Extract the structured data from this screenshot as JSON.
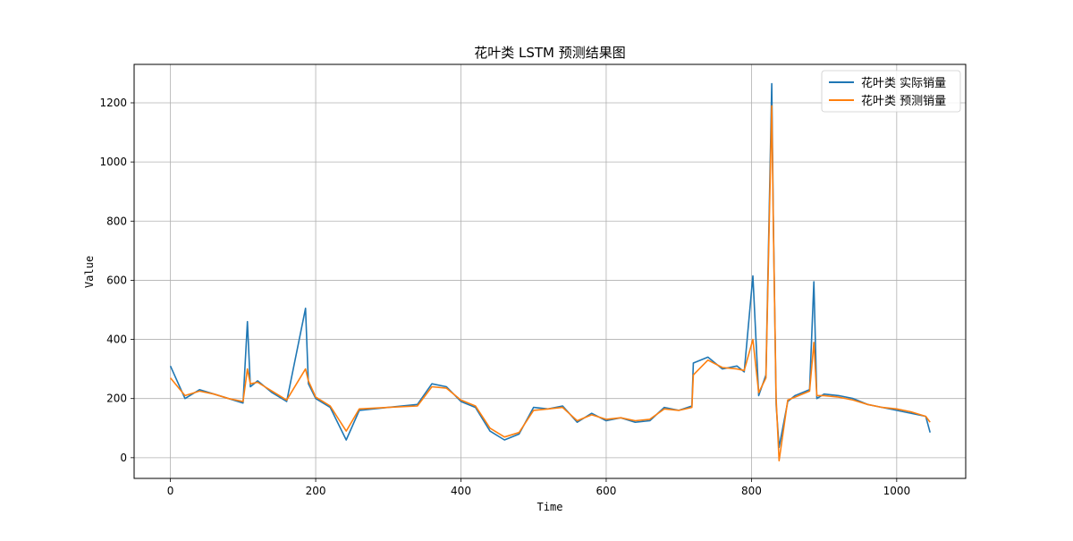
{
  "chart_data": {
    "type": "line",
    "title": "花叶类 LSTM 预测结果图",
    "xlabel": "Time",
    "ylabel": "Value",
    "xlim": [
      -50,
      1095
    ],
    "ylim": [
      -70,
      1330
    ],
    "xticks": [
      0,
      200,
      400,
      600,
      800,
      1000
    ],
    "yticks": [
      0,
      200,
      400,
      600,
      800,
      1000,
      1200
    ],
    "grid": true,
    "legend_position": "top-right",
    "series": [
      {
        "name": "花叶类 实际销量",
        "color": "#1f77b4",
        "x": [
          0,
          20,
          40,
          60,
          80,
          100,
          106,
          110,
          120,
          140,
          160,
          186,
          190,
          200,
          220,
          242,
          260,
          300,
          340,
          360,
          380,
          400,
          420,
          440,
          460,
          480,
          500,
          520,
          540,
          560,
          580,
          600,
          620,
          640,
          660,
          680,
          700,
          718,
          720,
          740,
          760,
          780,
          790,
          802,
          810,
          820,
          828,
          830,
          834,
          838,
          850,
          860,
          880,
          886,
          890,
          900,
          920,
          940,
          960,
          980,
          1000,
          1020,
          1040,
          1046
        ],
        "values": [
          310,
          200,
          230,
          215,
          200,
          185,
          460,
          240,
          260,
          220,
          190,
          505,
          250,
          200,
          170,
          60,
          160,
          170,
          180,
          250,
          240,
          190,
          170,
          90,
          60,
          80,
          170,
          165,
          175,
          120,
          150,
          125,
          135,
          120,
          125,
          170,
          160,
          175,
          320,
          340,
          300,
          310,
          290,
          615,
          210,
          280,
          1265,
          820,
          180,
          35,
          190,
          210,
          230,
          595,
          200,
          215,
          210,
          200,
          180,
          170,
          160,
          150,
          140,
          85
        ]
      },
      {
        "name": "花叶类 预测销量",
        "color": "#ff7f0e",
        "x": [
          0,
          20,
          40,
          60,
          80,
          100,
          106,
          110,
          120,
          140,
          160,
          186,
          190,
          200,
          220,
          242,
          260,
          300,
          340,
          360,
          380,
          400,
          420,
          440,
          460,
          480,
          500,
          520,
          540,
          560,
          580,
          600,
          620,
          640,
          660,
          680,
          700,
          718,
          720,
          740,
          760,
          780,
          790,
          802,
          810,
          820,
          828,
          830,
          834,
          838,
          850,
          860,
          880,
          886,
          890,
          900,
          920,
          940,
          960,
          980,
          1000,
          1020,
          1040,
          1046
        ],
        "values": [
          270,
          210,
          225,
          215,
          200,
          190,
          300,
          250,
          255,
          225,
          195,
          300,
          260,
          205,
          175,
          90,
          165,
          170,
          175,
          240,
          235,
          195,
          175,
          100,
          70,
          85,
          160,
          165,
          170,
          125,
          145,
          130,
          135,
          125,
          130,
          165,
          160,
          170,
          280,
          330,
          305,
          300,
          295,
          400,
          220,
          270,
          1190,
          800,
          200,
          -10,
          195,
          205,
          225,
          390,
          210,
          210,
          205,
          195,
          180,
          170,
          165,
          155,
          140,
          120
        ]
      }
    ]
  }
}
